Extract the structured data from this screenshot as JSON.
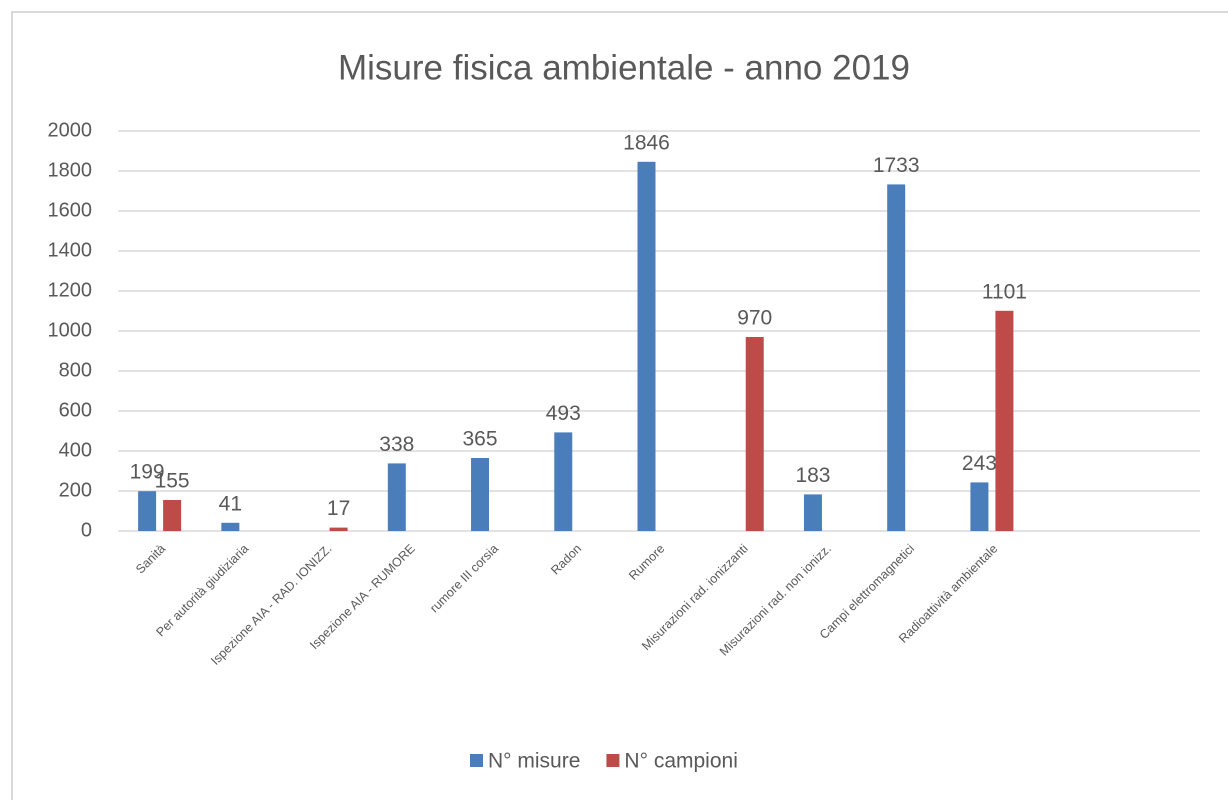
{
  "chart_data": {
    "type": "bar",
    "title": "Misure fisica ambientale - anno 2019",
    "categories": [
      "Sanità",
      "Per autorità giudiziaria",
      "Ispezione AIA - RAD. IONIZZ.",
      "Ispezione AIA - RUMORE",
      "rumore  III corsia",
      "Radon",
      "Rumore",
      "Misurazioni rad. ionizzanti",
      "Misurazioni rad. non ionizz.",
      "Campi elettromagnetici",
      "Radioattività ambientale",
      null,
      null
    ],
    "series": [
      {
        "name": "N° misure",
        "color": "#4a7ebb",
        "values": [
          199,
          41,
          null,
          338,
          365,
          493,
          1846,
          null,
          183,
          1733,
          243,
          null,
          null
        ]
      },
      {
        "name": "N° campioni",
        "color": "#be4b48",
        "values": [
          155,
          null,
          17,
          null,
          null,
          null,
          null,
          970,
          null,
          null,
          1101,
          null,
          null
        ]
      }
    ],
    "ylim": [
      0,
      2000
    ],
    "yticks": [
      0,
      200,
      400,
      600,
      800,
      1000,
      1200,
      1400,
      1600,
      1800,
      2000
    ],
    "grid": true,
    "legend": "bottom"
  }
}
